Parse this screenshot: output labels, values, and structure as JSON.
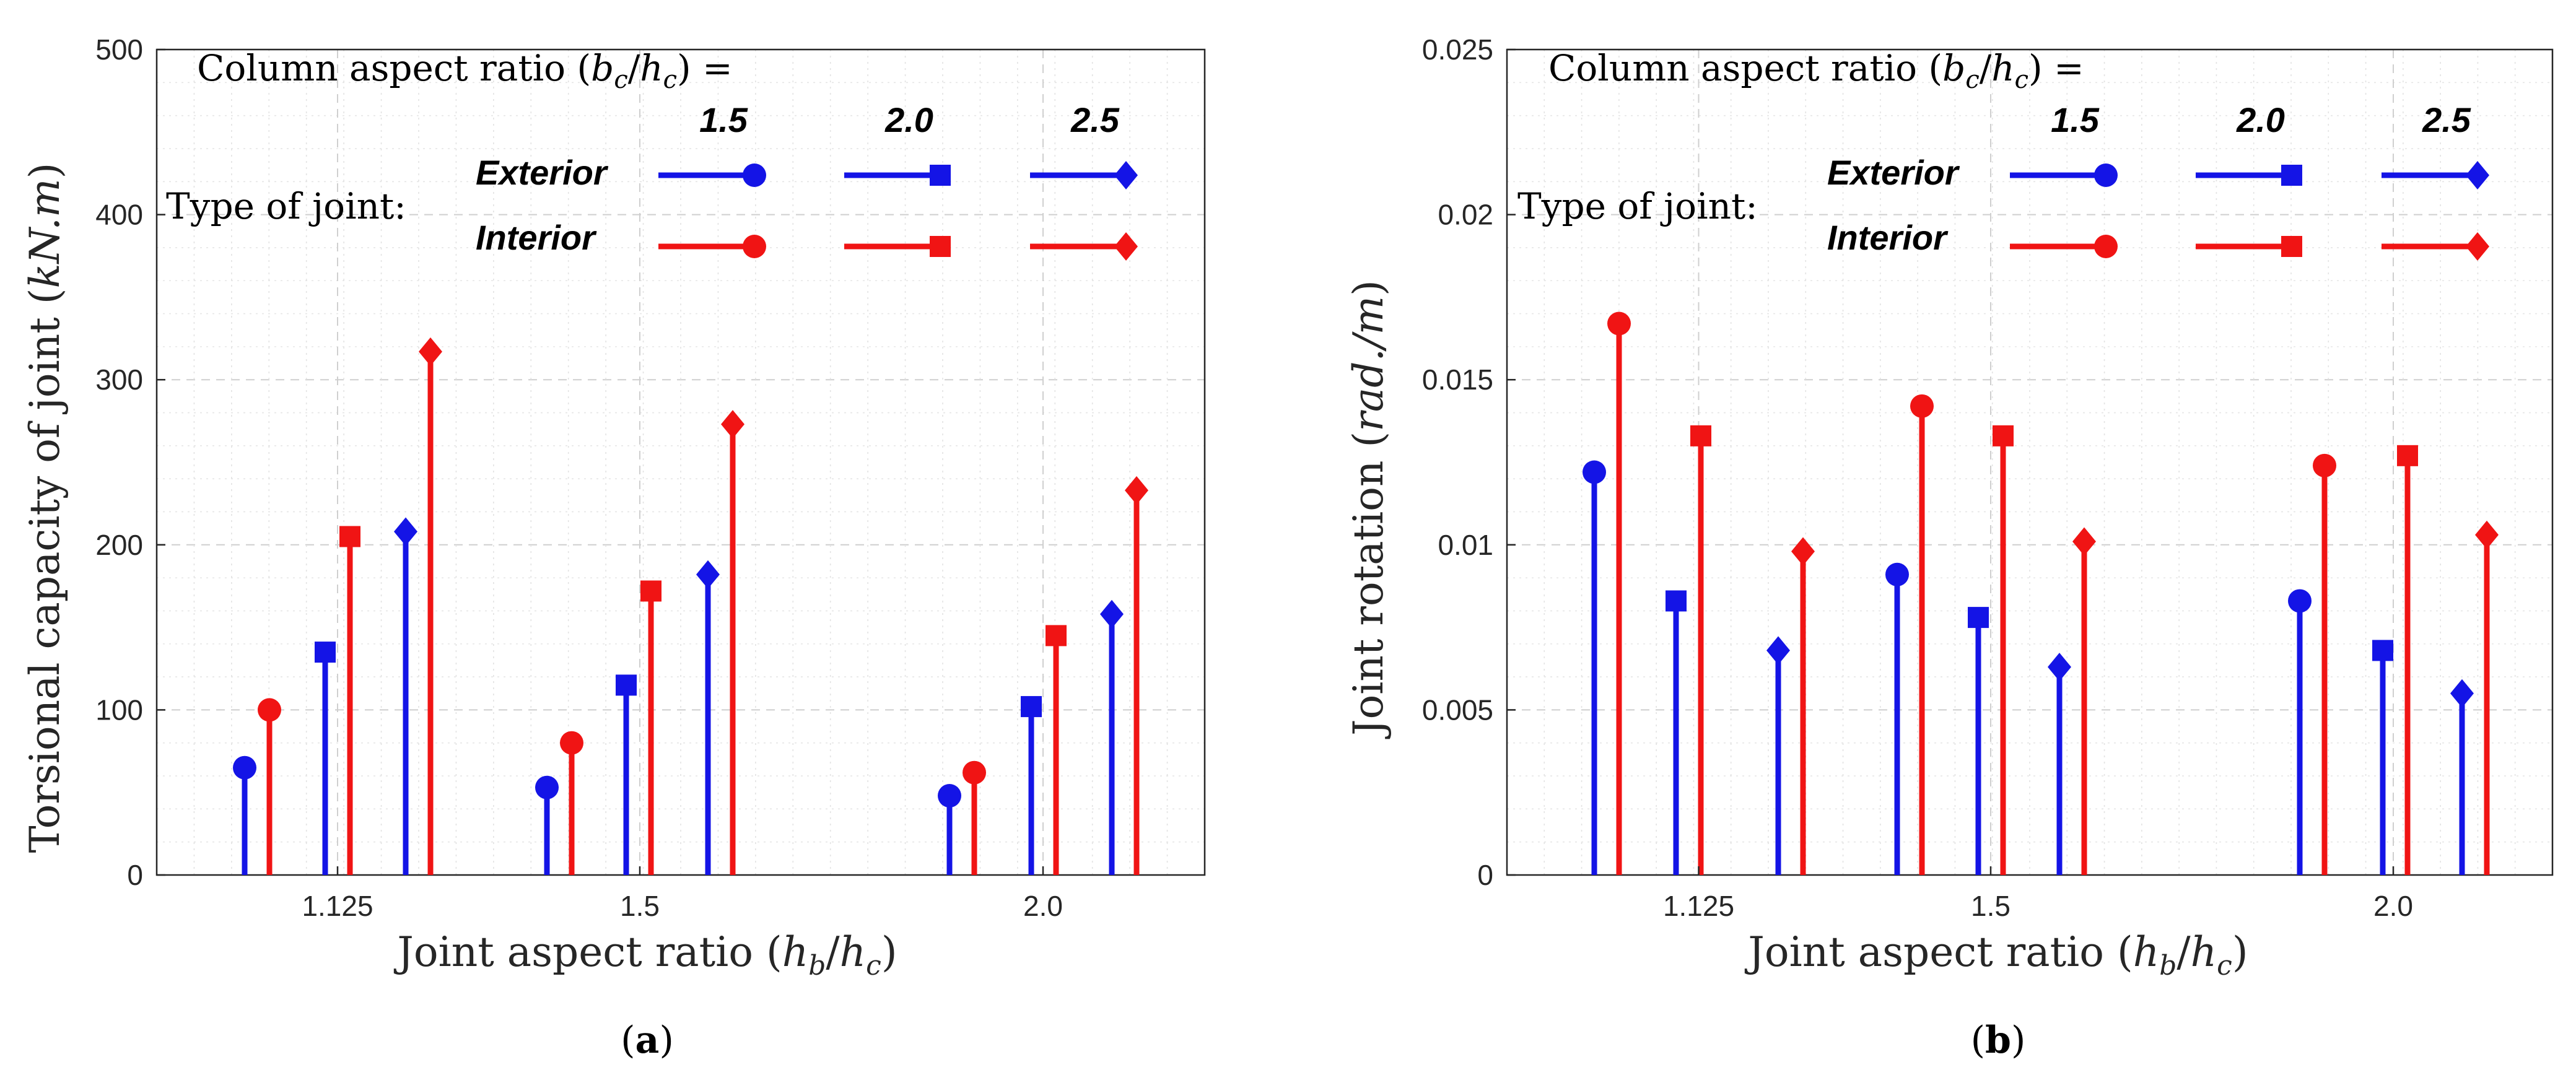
{
  "chart_data": [
    {
      "type": "stem",
      "panel_label": "(a)",
      "ylabel": "Torsional capacity of joint (kN.m)",
      "xlabel": "Joint aspect ratio (h_b/h_c)",
      "categories": [
        "1.125",
        "1.5",
        "2.0"
      ],
      "ylim": [
        0,
        500
      ],
      "yticks": [
        "0",
        "100",
        "200",
        "300",
        "400",
        "500"
      ],
      "grid": true,
      "series": [
        {
          "name": "Exterior 1.5",
          "joint": "Exterior",
          "aspect": "1.5",
          "marker": "circle",
          "color": "#1414e6",
          "values": [
            65,
            53,
            48
          ]
        },
        {
          "name": "Interior 1.5",
          "joint": "Interior",
          "aspect": "1.5",
          "marker": "circle",
          "color": "#f01414",
          "values": [
            100,
            80,
            62
          ]
        },
        {
          "name": "Exterior 2.0",
          "joint": "Exterior",
          "aspect": "2.0",
          "marker": "square",
          "color": "#1414e6",
          "values": [
            135,
            115,
            102
          ]
        },
        {
          "name": "Interior 2.0",
          "joint": "Interior",
          "aspect": "2.0",
          "marker": "square",
          "color": "#f01414",
          "values": [
            205,
            172,
            145
          ]
        },
        {
          "name": "Exterior 2.5",
          "joint": "Exterior",
          "aspect": "2.5",
          "marker": "diamond",
          "color": "#1414e6",
          "values": [
            208,
            182,
            158
          ]
        },
        {
          "name": "Interior 2.5",
          "joint": "Interior",
          "aspect": "2.5",
          "marker": "diamond",
          "color": "#f01414",
          "values": [
            317,
            273,
            233
          ]
        }
      ]
    },
    {
      "type": "stem",
      "panel_label": "(b)",
      "ylabel": "Joint rotation (rad./m)",
      "xlabel": "Joint aspect ratio (h_b/h_c)",
      "categories": [
        "1.125",
        "1.5",
        "2.0"
      ],
      "ylim": [
        0,
        0.025
      ],
      "yticks": [
        "0",
        "0.005",
        "0.01",
        "0.015",
        "0.02",
        "0.025"
      ],
      "grid": true,
      "series": [
        {
          "name": "Exterior 1.5",
          "joint": "Exterior",
          "aspect": "1.5",
          "marker": "circle",
          "color": "#1414e6",
          "values": [
            0.0122,
            0.0091,
            0.0083
          ]
        },
        {
          "name": "Interior 1.5",
          "joint": "Interior",
          "aspect": "1.5",
          "marker": "circle",
          "color": "#f01414",
          "values": [
            0.0167,
            0.0142,
            0.0124
          ]
        },
        {
          "name": "Exterior 2.0",
          "joint": "Exterior",
          "aspect": "2.0",
          "marker": "square",
          "color": "#1414e6",
          "values": [
            0.0083,
            0.0078,
            0.0068
          ]
        },
        {
          "name": "Interior 2.0",
          "joint": "Interior",
          "aspect": "2.0",
          "marker": "square",
          "color": "#f01414",
          "values": [
            0.0133,
            0.0133,
            0.0127
          ]
        },
        {
          "name": "Exterior 2.5",
          "joint": "Exterior",
          "aspect": "2.5",
          "marker": "diamond",
          "color": "#1414e6",
          "values": [
            0.0068,
            0.0063,
            0.0055
          ]
        },
        {
          "name": "Interior 2.5",
          "joint": "Interior",
          "aspect": "2.5",
          "marker": "diamond",
          "color": "#f01414",
          "values": [
            0.0098,
            0.0101,
            0.0103
          ]
        }
      ]
    }
  ],
  "legend": {
    "column_title": "Column aspect ratio (b_c/h_c) =",
    "joint_title": "Type of joint:",
    "aspect_labels": [
      "1.5",
      "2.0",
      "2.5"
    ],
    "joint_labels": [
      "Exterior",
      "Interior"
    ]
  },
  "colors": {
    "exterior": "#1414e6",
    "interior": "#f01414",
    "grid": "#d0d0d0",
    "axis": "#262626"
  }
}
